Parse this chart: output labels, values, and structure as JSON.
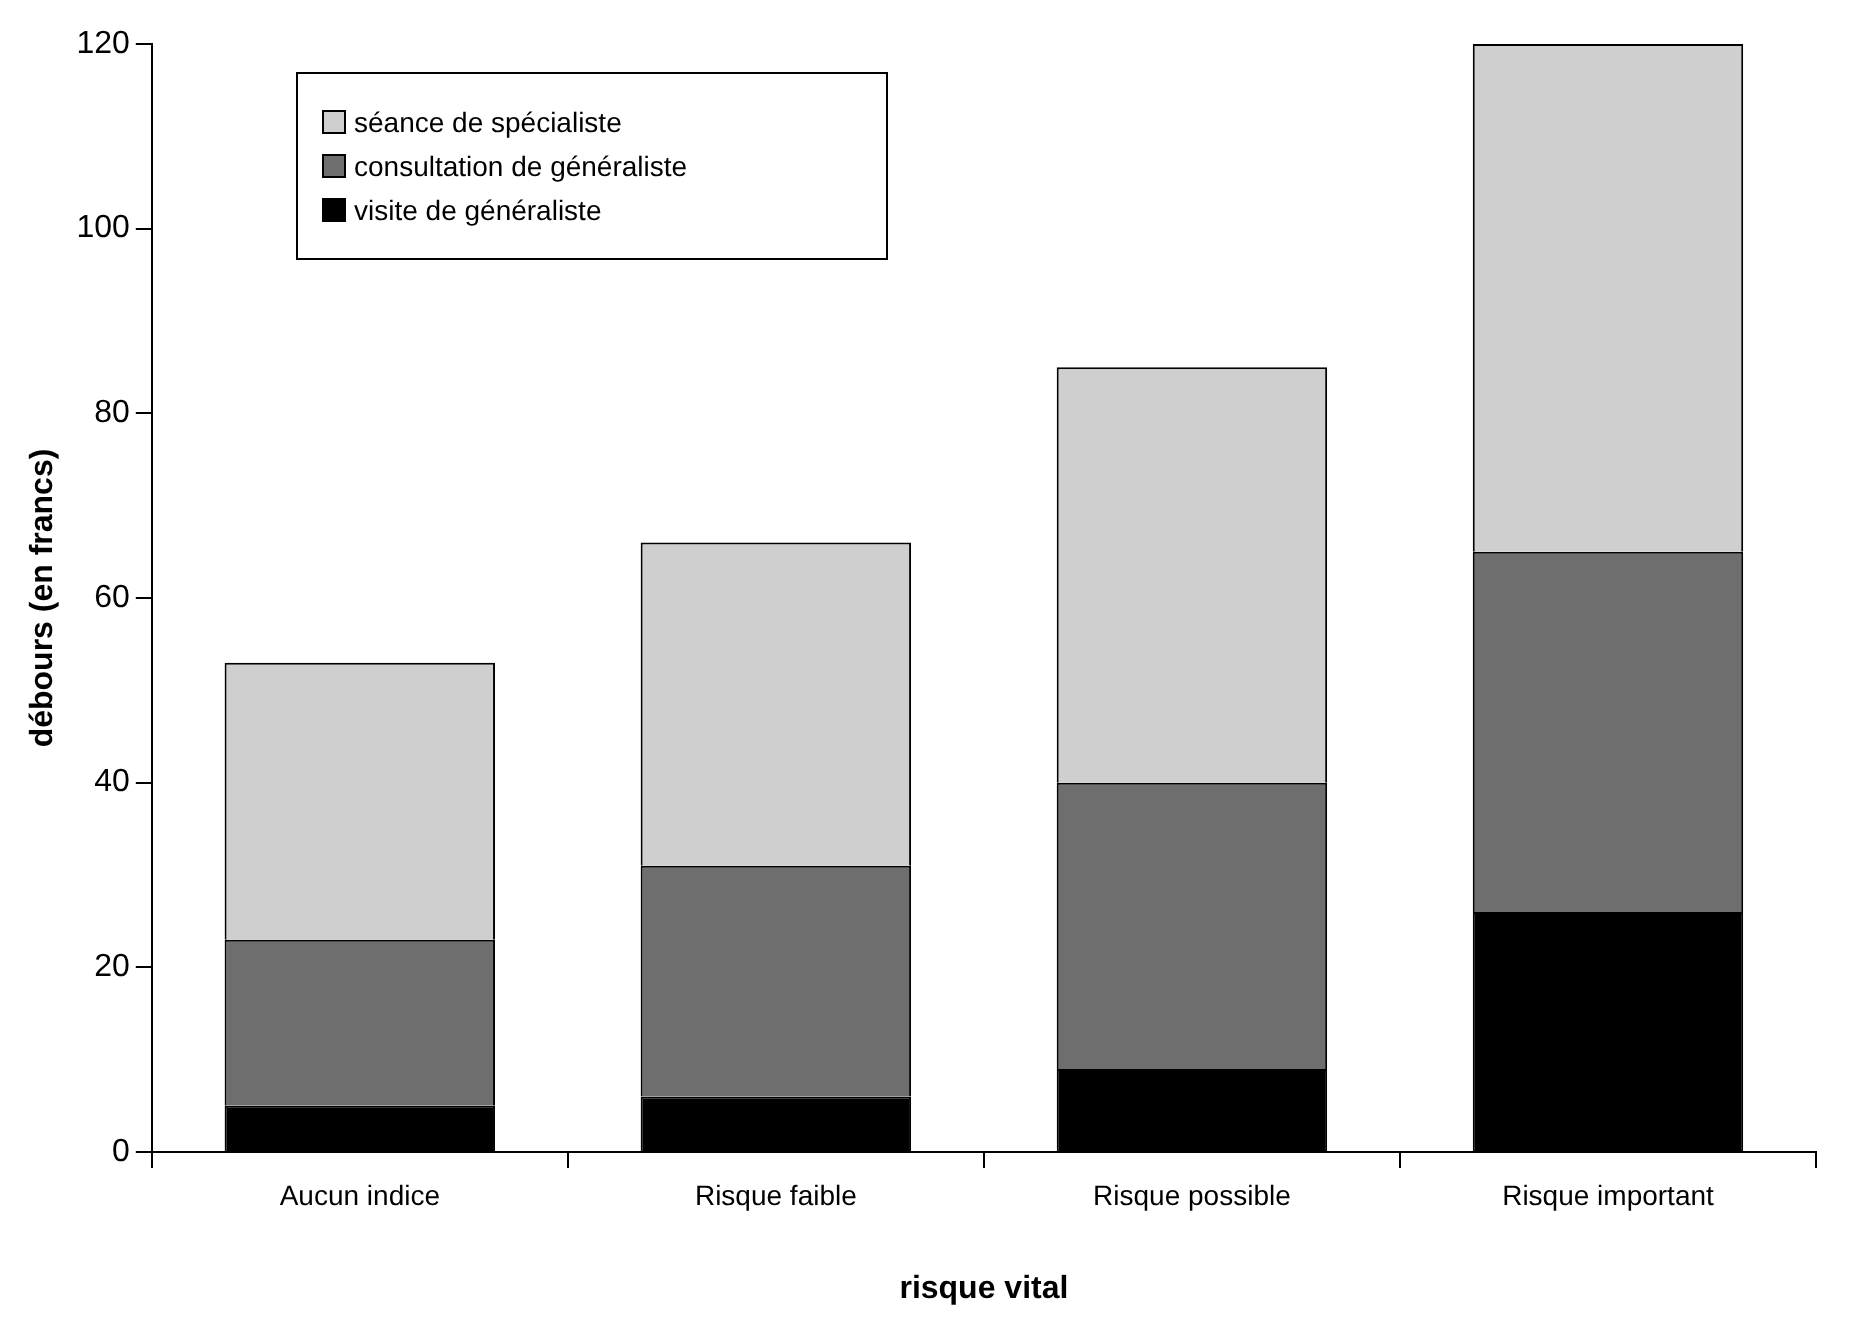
{
  "chart_data": {
    "type": "bar",
    "stacked": true,
    "xlabel": "risque vital",
    "ylabel": "débours (en francs)",
    "categories": [
      "Aucun indice",
      "Risque faible",
      "Risque possible",
      "Risque important"
    ],
    "series": [
      {
        "name": "visite de généraliste",
        "color": "#000000",
        "values": [
          5,
          6,
          9,
          26
        ]
      },
      {
        "name": "consultation de généraliste",
        "color": "#6e6e6e",
        "values": [
          18,
          25,
          31,
          39
        ]
      },
      {
        "name": "séance de spécialiste",
        "color": "#cfcfcf",
        "values": [
          30,
          35,
          45,
          55
        ]
      }
    ],
    "ylim": [
      0,
      120
    ],
    "yticks": [
      0,
      20,
      40,
      60,
      80,
      100,
      120
    ],
    "grid": false,
    "legend": "top left"
  }
}
